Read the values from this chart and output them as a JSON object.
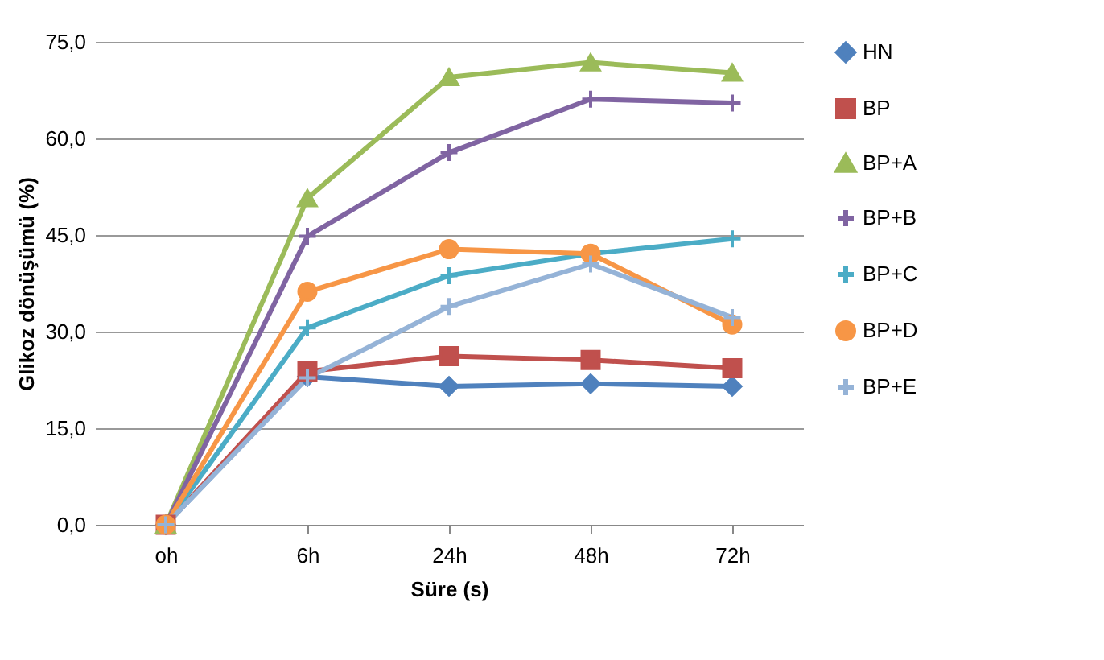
{
  "chart_data": {
    "type": "line",
    "xlabel": "Süre (s)",
    "ylabel": "Glikoz dönüşümü (%)",
    "categories": [
      "oh",
      "6h",
      "24h",
      "48h",
      "72h"
    ],
    "series": [
      {
        "name": "HN",
        "color": "#4f81bd",
        "marker": "diamond",
        "values": [
          0,
          23.0,
          21.5,
          21.9,
          21.5
        ]
      },
      {
        "name": "BP",
        "color": "#c0504d",
        "marker": "square",
        "values": [
          0,
          23.8,
          26.2,
          25.6,
          24.3
        ]
      },
      {
        "name": "BP+A",
        "color": "#9bbb59",
        "marker": "triangle",
        "values": [
          0,
          50.7,
          69.5,
          71.8,
          70.2
        ]
      },
      {
        "name": "BP+B",
        "color": "#8064a2",
        "marker": "cross",
        "values": [
          0,
          44.8,
          57.8,
          66.1,
          65.5
        ]
      },
      {
        "name": "BP+C",
        "color": "#4bacc6",
        "marker": "cross",
        "values": [
          0,
          30.6,
          38.7,
          42.1,
          44.4
        ]
      },
      {
        "name": "BP+D",
        "color": "#f79646",
        "marker": "circle",
        "values": [
          0,
          36.2,
          42.8,
          42.1,
          31.1
        ]
      },
      {
        "name": "BP+E",
        "color": "#95b3d7",
        "marker": "cross",
        "values": [
          0,
          22.8,
          33.9,
          40.5,
          32.2
        ]
      }
    ],
    "ylim": [
      0,
      75
    ],
    "yticks": [
      {
        "value": 0,
        "label": "0,0"
      },
      {
        "value": 15,
        "label": "15,0"
      },
      {
        "value": 30,
        "label": "30,0"
      },
      {
        "value": 45,
        "label": "45,0"
      },
      {
        "value": 60,
        "label": "60,0"
      },
      {
        "value": 75,
        "label": "75,0"
      }
    ],
    "grid": "y",
    "legend": "right",
    "line_style": "solid"
  }
}
